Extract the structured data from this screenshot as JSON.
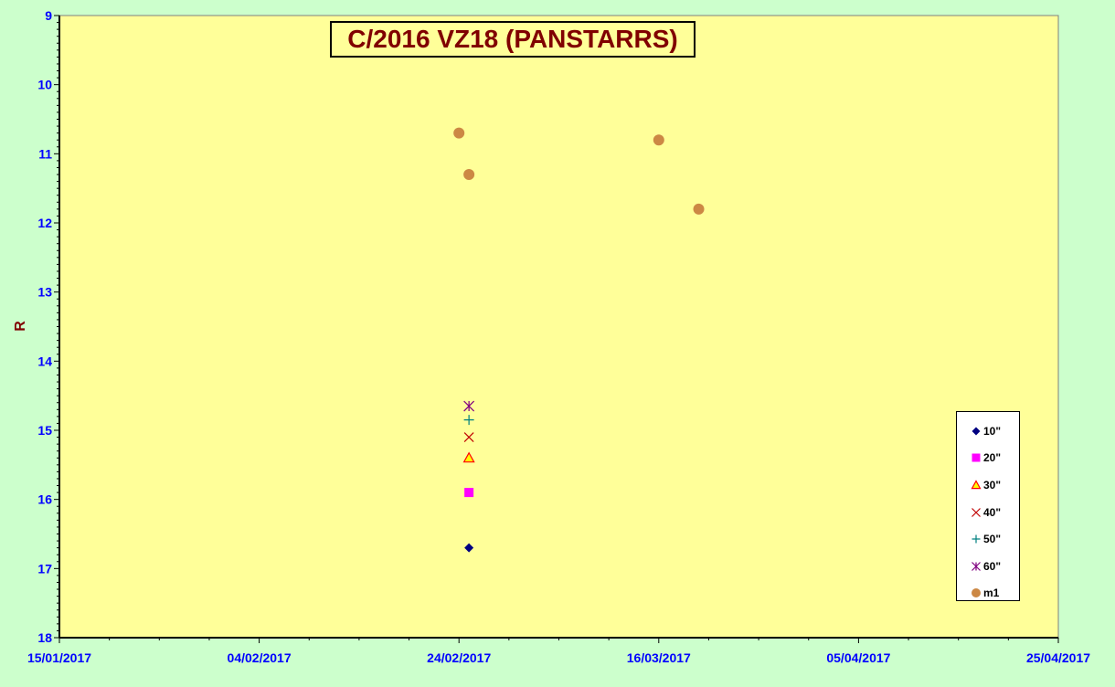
{
  "chart_data": {
    "type": "scatter",
    "title": "C/2016 VZ18 (PANSTARRS)",
    "xlabel": "",
    "ylabel": "R",
    "y_inverted": true,
    "ylim": [
      9,
      18
    ],
    "y_ticks": [
      9,
      10,
      11,
      12,
      13,
      14,
      15,
      16,
      17,
      18
    ],
    "xlim": [
      "2017-01-15",
      "2017-04-25"
    ],
    "x_ticks": [
      "15/01/2017",
      "04/02/2017",
      "24/02/2017",
      "16/03/2017",
      "05/04/2017",
      "25/04/2017"
    ],
    "grid": false,
    "legend_position": "right",
    "plot_background": "#ffff99",
    "page_background": "#ccffcc",
    "series": [
      {
        "name": "10\"",
        "marker": "diamond",
        "color": "#000080",
        "points": [
          {
            "x": "2017-02-25",
            "y": 16.7
          }
        ]
      },
      {
        "name": "20\"",
        "marker": "square",
        "color": "#ff00ff",
        "points": [
          {
            "x": "2017-02-25",
            "y": 15.9
          }
        ]
      },
      {
        "name": "30\"",
        "marker": "triangle",
        "color": "#ff0000",
        "fill": "#ffff00",
        "points": [
          {
            "x": "2017-02-25",
            "y": 15.4
          }
        ]
      },
      {
        "name": "40\"",
        "marker": "x",
        "color": "#c00000",
        "points": [
          {
            "x": "2017-02-25",
            "y": 15.1
          }
        ]
      },
      {
        "name": "50\"",
        "marker": "plus",
        "color": "#008080",
        "points": [
          {
            "x": "2017-02-25",
            "y": 14.85
          }
        ]
      },
      {
        "name": "60\"",
        "marker": "star",
        "color": "#800080",
        "points": [
          {
            "x": "2017-02-25",
            "y": 14.65
          }
        ]
      },
      {
        "name": "m1",
        "marker": "circle",
        "color": "#cc8844",
        "points": [
          {
            "x": "2017-02-24",
            "y": 10.7
          },
          {
            "x": "2017-02-25",
            "y": 11.3
          },
          {
            "x": "2017-03-16",
            "y": 10.8
          },
          {
            "x": "2017-03-20",
            "y": 11.8
          }
        ]
      }
    ]
  }
}
